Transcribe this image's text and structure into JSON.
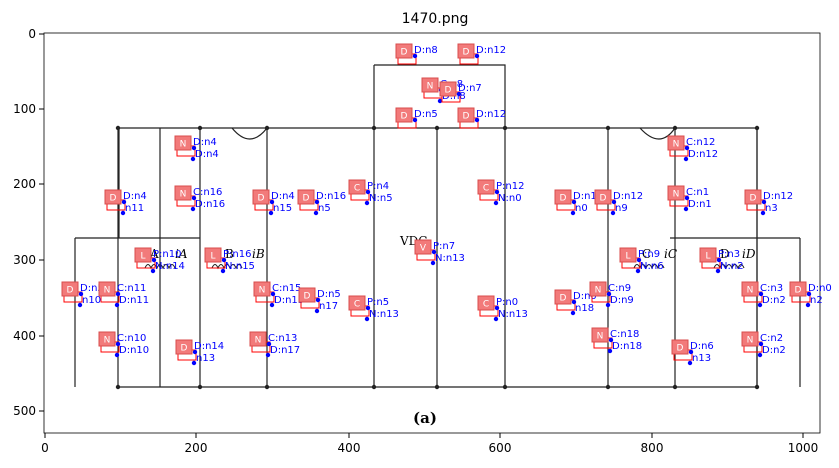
{
  "figure": {
    "title": "1470.png",
    "x_ticks": [
      "0",
      "200",
      "400",
      "600",
      "800",
      "1000"
    ],
    "y_ticks": [
      "0",
      "100",
      "200",
      "300",
      "400",
      "500"
    ],
    "caption": "(a)"
  },
  "schematic_labels": {
    "phase_a": "A",
    "phase_b": "B",
    "phase_c": "C",
    "phase_d": "D",
    "current_a": "iA",
    "current_b": "iB",
    "current_c": "iC",
    "current_d": "iD",
    "v_dc": "VDC"
  },
  "components": [
    {
      "badge": "D",
      "label": "D:n8",
      "port": ""
    },
    {
      "badge": "D",
      "label": "D:n12",
      "port": ""
    },
    {
      "badge": "N",
      "label": "C:n8",
      "port": "D:n8"
    },
    {
      "badge": "D",
      "label": "D:n7",
      "port": ""
    },
    {
      "badge": "D",
      "label": "D:n5",
      "port": ""
    },
    {
      "badge": "D",
      "label": "D:n12",
      "port": ""
    },
    {
      "badge": "N",
      "label": "D:n4",
      "port": "D:n4"
    },
    {
      "badge": "N",
      "label": "C:n12",
      "port": "D:n12"
    },
    {
      "badge": "C",
      "label": "P:n4",
      "port": "N:n5"
    },
    {
      "badge": "C",
      "label": "P:n12",
      "port": "N:n0"
    },
    {
      "badge": "D",
      "label": "D:n4",
      "port": "n11"
    },
    {
      "badge": "N",
      "label": "C:n16",
      "port": "D:n16"
    },
    {
      "badge": "D",
      "label": "D:n4",
      "port": "n15"
    },
    {
      "badge": "D",
      "label": "D:n16",
      "port": "n5"
    },
    {
      "badge": "D",
      "label": "D:n1",
      "port": "n0"
    },
    {
      "badge": "D",
      "label": "D:n12",
      "port": "n9"
    },
    {
      "badge": "N",
      "label": "C:n1",
      "port": "D:n1"
    },
    {
      "badge": "D",
      "label": "D:n12",
      "port": "n3"
    },
    {
      "badge": "V",
      "label": "P:n7",
      "port": "N:n13"
    },
    {
      "badge": "L",
      "label": "P:n10",
      "port": "N:n14"
    },
    {
      "badge": "L",
      "label": "P:n16",
      "port": "N:n15"
    },
    {
      "badge": "L",
      "label": "P:n9",
      "port": "N:n6"
    },
    {
      "badge": "L",
      "label": "P:n3",
      "port": "N:n2"
    },
    {
      "badge": "D",
      "label": "D:n5",
      "port": "n10"
    },
    {
      "badge": "N",
      "label": "C:n11",
      "port": "D:n11"
    },
    {
      "badge": "N",
      "label": "C:n15",
      "port": "D:n15"
    },
    {
      "badge": "D",
      "label": "D:n5",
      "port": "n17"
    },
    {
      "badge": "C",
      "label": "P:n5",
      "port": "N:n13"
    },
    {
      "badge": "C",
      "label": "P:n0",
      "port": "N:n13"
    },
    {
      "badge": "D",
      "label": "D:n0",
      "port": "n18"
    },
    {
      "badge": "N",
      "label": "C:n9",
      "port": "D:n9"
    },
    {
      "badge": "N",
      "label": "C:n3",
      "port": "D:n2"
    },
    {
      "badge": "D",
      "label": "D:n0",
      "port": "n2"
    },
    {
      "badge": "N",
      "label": "C:n10",
      "port": "D:n10"
    },
    {
      "badge": "D",
      "label": "D:n14",
      "port": "n13"
    },
    {
      "badge": "N",
      "label": "C:n13",
      "port": "D:n17"
    },
    {
      "badge": "N",
      "label": "C:n18",
      "port": "D:n18"
    },
    {
      "badge": "D",
      "label": "D:n6",
      "port": "n13"
    },
    {
      "badge": "N",
      "label": "C:n2",
      "port": "D:n2"
    }
  ]
}
